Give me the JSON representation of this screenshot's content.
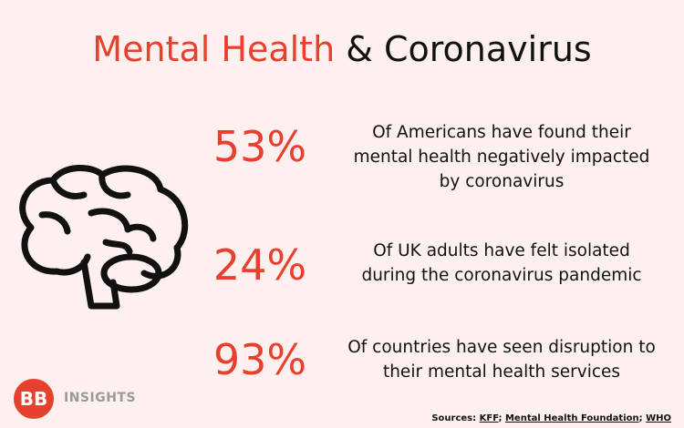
{
  "title": {
    "highlight": "Mental Health",
    "rest": "& Coronavirus"
  },
  "stats": [
    {
      "value": "53%",
      "lines": [
        "Of Americans have found their",
        "mental health negatively impacted",
        "by coronavirus"
      ]
    },
    {
      "value": "24%",
      "lines": [
        "Of UK adults have felt isolated",
        "during the coronavirus pandemic"
      ]
    },
    {
      "value": "93%",
      "lines": [
        "Of countries have seen disruption to",
        "their mental health services"
      ]
    }
  ],
  "logo": {
    "mark": "BB",
    "name": "INSIGHTS"
  },
  "sources": {
    "label": "Sources:",
    "items": [
      "KFF",
      "Mental Health Foundation",
      "WHO"
    ],
    "separator": ";"
  }
}
